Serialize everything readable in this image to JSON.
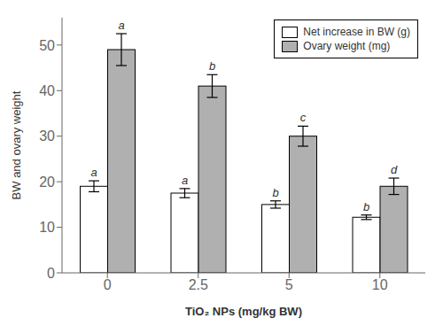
{
  "chart_data": {
    "type": "bar",
    "xlabel": "TiO₂ NPs (mg/kg BW)",
    "ylabel": "BW and ovary weight",
    "categories": [
      "0",
      "2.5",
      "5",
      "10"
    ],
    "series": [
      {
        "name": "Net increase in BW (g)",
        "color": "#ffffff",
        "values": [
          19.0,
          17.5,
          15.0,
          12.2
        ],
        "errors": [
          1.2,
          1.0,
          0.8,
          0.5
        ],
        "letters": [
          "a",
          "a",
          "b",
          "b"
        ]
      },
      {
        "name": "Ovary weight (mg)",
        "color": "#b0b0b0",
        "values": [
          49.0,
          41.0,
          30.0,
          19.0
        ],
        "errors": [
          3.5,
          2.5,
          2.2,
          1.8
        ],
        "letters": [
          "a",
          "b",
          "c",
          "d"
        ]
      }
    ],
    "ylim": [
      0,
      56
    ],
    "yticks": [
      0,
      10,
      20,
      30,
      40,
      50
    ],
    "legend": "upper right"
  }
}
